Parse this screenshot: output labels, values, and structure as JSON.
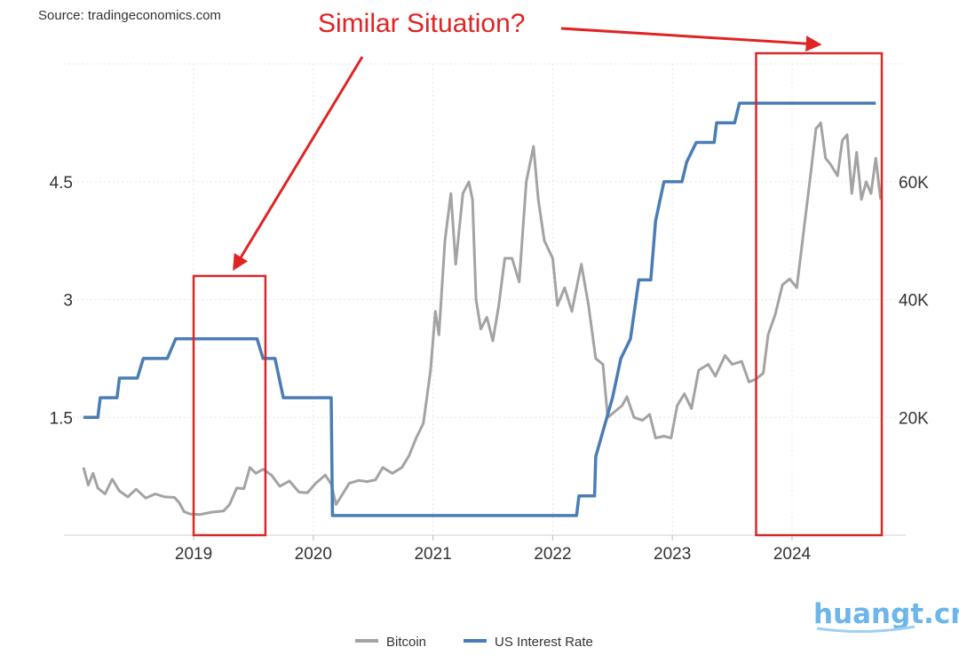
{
  "chart_data": {
    "type": "line",
    "source": "Source: tradingeconomics.com",
    "annotation": "Similar Situation?",
    "watermark": "huangt.cn",
    "x_tick_labels": [
      "2019",
      "2020",
      "2021",
      "2022",
      "2023",
      "2024"
    ],
    "y_left_ticks": [
      {
        "value": 1.5,
        "label": "1.5"
      },
      {
        "value": 3,
        "label": "3"
      },
      {
        "value": 4.5,
        "label": "4.5"
      }
    ],
    "y_right_ticks": [
      {
        "value": 20000,
        "label": "20K"
      },
      {
        "value": 40000,
        "label": "40K"
      },
      {
        "value": 60000,
        "label": "60K"
      }
    ],
    "ylim_left": [
      0,
      6
    ],
    "ylim_right": [
      0,
      80000
    ],
    "xlim": [
      2018.05,
      2024.95
    ],
    "highlight_ranges": [
      [
        2019.0,
        2019.6
      ],
      [
        2023.7,
        2024.75
      ]
    ],
    "series": [
      {
        "name": "Bitcoin",
        "axis": "right",
        "color": "#a3a3a3",
        "points": [
          [
            2018.08,
            11500
          ],
          [
            2018.12,
            8500
          ],
          [
            2018.16,
            10500
          ],
          [
            2018.2,
            8000
          ],
          [
            2018.26,
            7000
          ],
          [
            2018.32,
            9500
          ],
          [
            2018.38,
            7500
          ],
          [
            2018.45,
            6500
          ],
          [
            2018.52,
            7800
          ],
          [
            2018.6,
            6300
          ],
          [
            2018.68,
            7000
          ],
          [
            2018.76,
            6500
          ],
          [
            2018.84,
            6400
          ],
          [
            2018.88,
            5500
          ],
          [
            2018.92,
            4000
          ],
          [
            2018.97,
            3600
          ],
          [
            2019.05,
            3500
          ],
          [
            2019.15,
            3900
          ],
          [
            2019.25,
            4100
          ],
          [
            2019.3,
            5200
          ],
          [
            2019.36,
            8000
          ],
          [
            2019.42,
            7900
          ],
          [
            2019.47,
            11500
          ],
          [
            2019.52,
            10500
          ],
          [
            2019.58,
            11200
          ],
          [
            2019.65,
            10200
          ],
          [
            2019.72,
            8300
          ],
          [
            2019.8,
            9200
          ],
          [
            2019.88,
            7300
          ],
          [
            2019.95,
            7200
          ],
          [
            2020.02,
            8800
          ],
          [
            2020.1,
            10200
          ],
          [
            2020.15,
            8700
          ],
          [
            2020.19,
            5200
          ],
          [
            2020.23,
            6500
          ],
          [
            2020.3,
            8800
          ],
          [
            2020.38,
            9300
          ],
          [
            2020.45,
            9100
          ],
          [
            2020.52,
            9400
          ],
          [
            2020.58,
            11500
          ],
          [
            2020.66,
            10500
          ],
          [
            2020.74,
            11500
          ],
          [
            2020.8,
            13500
          ],
          [
            2020.86,
            16500
          ],
          [
            2020.92,
            19000
          ],
          [
            2020.98,
            28000
          ],
          [
            2021.02,
            38000
          ],
          [
            2021.05,
            34000
          ],
          [
            2021.1,
            50000
          ],
          [
            2021.15,
            58000
          ],
          [
            2021.19,
            46000
          ],
          [
            2021.25,
            58000
          ],
          [
            2021.3,
            60000
          ],
          [
            2021.33,
            57000
          ],
          [
            2021.36,
            40000
          ],
          [
            2021.4,
            35000
          ],
          [
            2021.45,
            37000
          ],
          [
            2021.5,
            33000
          ],
          [
            2021.55,
            39000
          ],
          [
            2021.6,
            47000
          ],
          [
            2021.66,
            47000
          ],
          [
            2021.72,
            43000
          ],
          [
            2021.78,
            60000
          ],
          [
            2021.84,
            66000
          ],
          [
            2021.88,
            57000
          ],
          [
            2021.93,
            50000
          ],
          [
            2022.0,
            47000
          ],
          [
            2022.04,
            39000
          ],
          [
            2022.1,
            42000
          ],
          [
            2022.16,
            38000
          ],
          [
            2022.24,
            46000
          ],
          [
            2022.3,
            39000
          ],
          [
            2022.36,
            30000
          ],
          [
            2022.42,
            29000
          ],
          [
            2022.46,
            20000
          ],
          [
            2022.52,
            21000
          ],
          [
            2022.58,
            22000
          ],
          [
            2022.62,
            23500
          ],
          [
            2022.68,
            20000
          ],
          [
            2022.75,
            19500
          ],
          [
            2022.81,
            20500
          ],
          [
            2022.86,
            16500
          ],
          [
            2022.93,
            16800
          ],
          [
            2022.99,
            16500
          ],
          [
            2023.04,
            22000
          ],
          [
            2023.1,
            24000
          ],
          [
            2023.16,
            21500
          ],
          [
            2023.22,
            28000
          ],
          [
            2023.3,
            29000
          ],
          [
            2023.36,
            27000
          ],
          [
            2023.44,
            30500
          ],
          [
            2023.5,
            29000
          ],
          [
            2023.58,
            29500
          ],
          [
            2023.64,
            26000
          ],
          [
            2023.7,
            26500
          ],
          [
            2023.76,
            27500
          ],
          [
            2023.8,
            34000
          ],
          [
            2023.86,
            37500
          ],
          [
            2023.92,
            42500
          ],
          [
            2023.98,
            43500
          ],
          [
            2024.04,
            42000
          ],
          [
            2024.1,
            52000
          ],
          [
            2024.16,
            62000
          ],
          [
            2024.2,
            69000
          ],
          [
            2024.24,
            70000
          ],
          [
            2024.28,
            64000
          ],
          [
            2024.32,
            63000
          ],
          [
            2024.38,
            61000
          ],
          [
            2024.42,
            67000
          ],
          [
            2024.46,
            68000
          ],
          [
            2024.5,
            58000
          ],
          [
            2024.54,
            65000
          ],
          [
            2024.58,
            57000
          ],
          [
            2024.62,
            60000
          ],
          [
            2024.66,
            58000
          ],
          [
            2024.7,
            64000
          ],
          [
            2024.74,
            57000
          ]
        ]
      },
      {
        "name": "US Interest Rate",
        "axis": "left",
        "color": "#4a7db5",
        "points": [
          [
            2018.08,
            1.5
          ],
          [
            2018.2,
            1.5
          ],
          [
            2018.22,
            1.75
          ],
          [
            2018.36,
            1.75
          ],
          [
            2018.38,
            2.0
          ],
          [
            2018.53,
            2.0
          ],
          [
            2018.58,
            2.25
          ],
          [
            2018.78,
            2.25
          ],
          [
            2018.85,
            2.5
          ],
          [
            2019.53,
            2.5
          ],
          [
            2019.58,
            2.25
          ],
          [
            2019.68,
            2.25
          ],
          [
            2019.75,
            1.75
          ],
          [
            2020.15,
            1.75
          ],
          [
            2020.16,
            0.25
          ],
          [
            2022.2,
            0.25
          ],
          [
            2022.22,
            0.5
          ],
          [
            2022.35,
            0.5
          ],
          [
            2022.36,
            1.0
          ],
          [
            2022.5,
            1.75
          ],
          [
            2022.57,
            2.25
          ],
          [
            2022.65,
            2.5
          ],
          [
            2022.72,
            3.25
          ],
          [
            2022.82,
            3.25
          ],
          [
            2022.86,
            4.0
          ],
          [
            2022.93,
            4.5
          ],
          [
            2023.08,
            4.5
          ],
          [
            2023.12,
            4.75
          ],
          [
            2023.2,
            5.0
          ],
          [
            2023.35,
            5.0
          ],
          [
            2023.37,
            5.25
          ],
          [
            2023.52,
            5.25
          ],
          [
            2023.56,
            5.5
          ],
          [
            2024.7,
            5.5
          ]
        ]
      }
    ],
    "legend": [
      {
        "label": "Bitcoin",
        "color": "#a3a3a3"
      },
      {
        "label": "US Interest Rate",
        "color": "#4a7db5"
      }
    ]
  }
}
